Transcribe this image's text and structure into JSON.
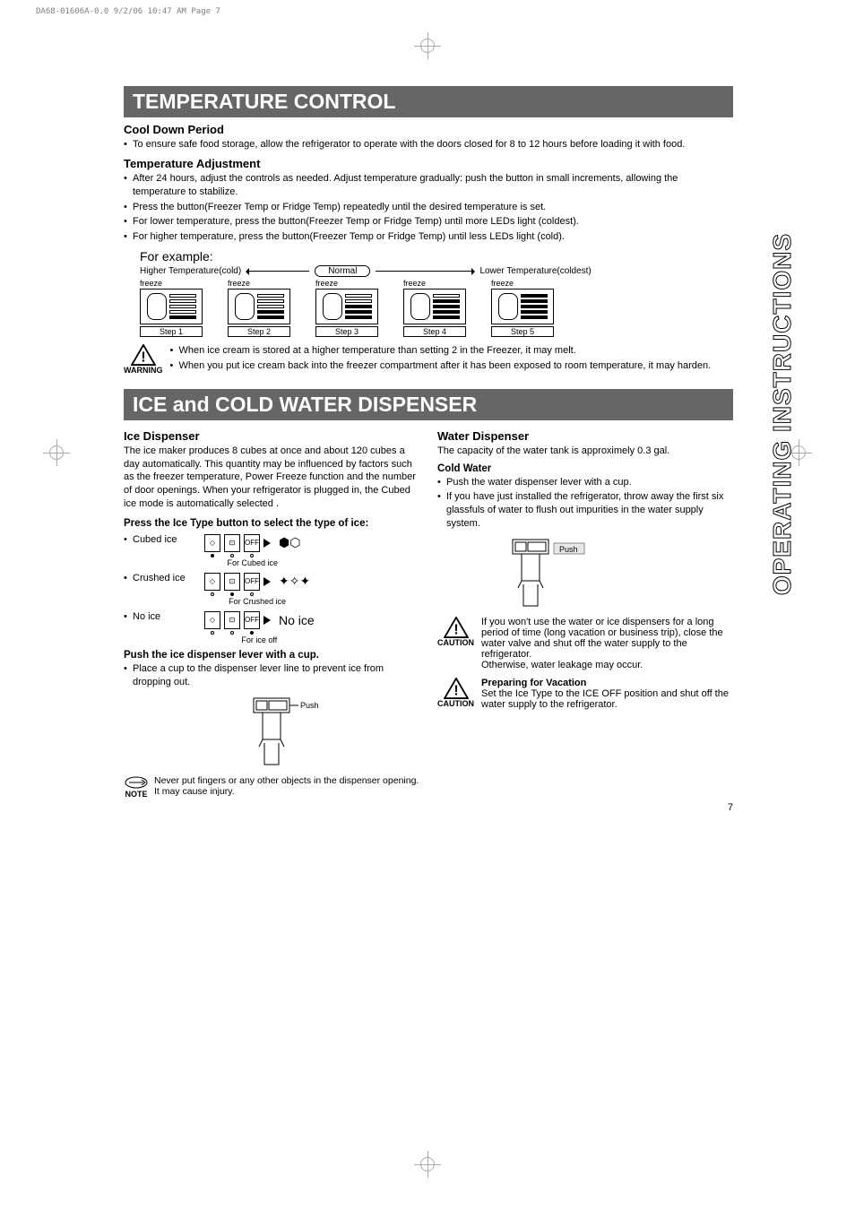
{
  "meta": {
    "header": "DA68-01606A-0.0  9/2/06 10:47 AM  Page 7"
  },
  "side_tab": "OPERATING INSTRUCTIONS",
  "section1": {
    "title": "TEMPERATURE CONTROL",
    "cool_head": "Cool Down Period",
    "cool_bullets": [
      "To ensure safe food storage, allow the refrigerator to operate with the doors closed for 8 to 12 hours before loading it with food."
    ],
    "adj_head": "Temperature Adjustment",
    "adj_bullets": [
      "After 24 hours, adjust the controls as needed. Adjust temperature gradually: push the button in small increments, allowing the temperature to stabilize.",
      "Press the button(Freezer Temp or Fridge Temp) repeatedly until the desired temperature is set.",
      "For lower temperature, press the button(Freezer Temp or Fridge Temp) until more LEDs light (coldest).",
      "For higher temperature, press the button(Freezer Temp or Fridge Temp) until less LEDs light (cold)."
    ],
    "example_label": "For example:",
    "higher": "Higher Temperature(cold)",
    "normal": "Normal",
    "lower": "Lower Temperature(coldest)",
    "freeze": "freeze",
    "steps": [
      "Step 1",
      "Step 2",
      "Step 3",
      "Step 4",
      "Step 5"
    ],
    "step_fills": [
      1,
      2,
      3,
      4,
      5
    ],
    "warning_label": "WARNING",
    "warning_items": [
      "When ice cream is stored at a higher temperature than setting 2 in the Freezer, it may melt.",
      "When you put ice cream back into the freezer compartment after it has been exposed to room temperature, it may harden."
    ]
  },
  "section2": {
    "title": "ICE and COLD WATER DISPENSER",
    "left": {
      "head": "Ice Dispenser",
      "intro": "The ice maker produces 8 cubes at once and about 120 cubes a day automatically. This quantity may be influenced by factors such as the freezer temperature, Power Freeze function and the number of door openings. When your refrigerator is plugged in, the Cubed ice mode is automatically selected .",
      "press_head": "Press the Ice Type button to select the type of ice:",
      "rows": [
        {
          "label": "Cubed ice",
          "under": "For Cubed ice",
          "result": "⬢⬡",
          "active": 0
        },
        {
          "label": "Crushed ice",
          "under": "For Crushed ice",
          "result": "✦✧✦",
          "active": 1
        },
        {
          "label": "No ice",
          "under": "For ice off",
          "result": "No ice",
          "active": 2
        }
      ],
      "btns": [
        "◇",
        "⊡",
        "OFF"
      ],
      "push_head": "Push the ice dispenser lever with a cup.",
      "push_bullets": [
        "Place a cup to the dispenser lever line to prevent ice from dropping out."
      ],
      "push": "Push",
      "note_label": "NOTE",
      "note_text": "Never put fingers or any other objects in the dispenser opening. It may cause injury."
    },
    "right": {
      "head": "Water Dispenser",
      "intro": "The capacity of the water tank is approximely 0.3 gal.",
      "cold_head": "Cold Water",
      "cold_bullets": [
        "Push the water dispenser lever with a cup.",
        "If you have just installed the refrigerator, throw away the first six glassfuls of water to flush out impurities in the water supply system."
      ],
      "push": "Push",
      "caution_label": "CAUTION",
      "caution1": "If you won't use the water or ice dispensers for a long period of time (long vacation or business trip), close the water valve and shut off the water supply to the refrigerator.\nOtherwise, water  leakage may occur.",
      "vac_head": "Preparing for Vacation",
      "caution2": "Set the Ice Type to the ICE OFF position and shut off the water supply to the refrigerator."
    }
  },
  "page_num": "7",
  "colors": {
    "title_bg": "#666666",
    "title_fg": "#ffffff",
    "text": "#000000",
    "meta": "#808080"
  }
}
